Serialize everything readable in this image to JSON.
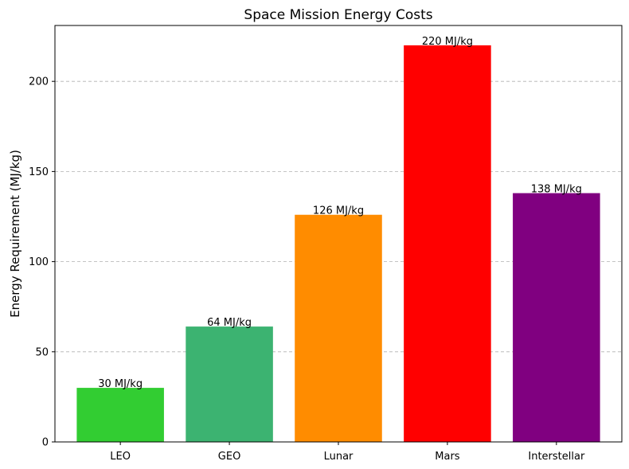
{
  "chart_data": {
    "type": "bar",
    "title": "Space Mission Energy Costs",
    "xlabel": "",
    "ylabel": "Energy Requirement (MJ/kg)",
    "categories": [
      "LEO",
      "GEO",
      "Lunar",
      "Mars",
      "Interstellar"
    ],
    "values": [
      30,
      64,
      126,
      220,
      138
    ],
    "data_labels": [
      "30 MJ/kg",
      "64 MJ/kg",
      "126 MJ/kg",
      "220 MJ/kg",
      "138 MJ/kg"
    ],
    "colors": [
      "#32cd32",
      "#3cb371",
      "#ff8c00",
      "#ff0000",
      "#800080"
    ],
    "ylim": [
      0,
      231
    ],
    "yticks": [
      0,
      50,
      100,
      150,
      200
    ],
    "grid": "y-dashed",
    "legend": "none"
  }
}
